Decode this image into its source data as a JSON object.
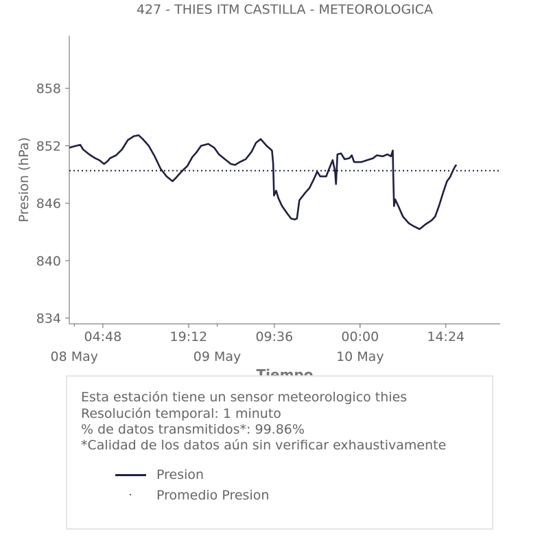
{
  "chart_data": {
    "type": "line",
    "title": "427 - THIES ITM CASTILLA - METEOROLOGICA",
    "xlabel": "Tiempo",
    "ylabel": "Presion (hPa)",
    "ylim": [
      833.4,
      863.5
    ],
    "y_ticks": [
      834,
      840,
      846,
      852,
      858
    ],
    "x_unit": "hours since 08 May 00:00",
    "xlim": [
      -0.84,
      71.53
    ],
    "x_ticks": [
      {
        "x": 4.8,
        "label": "04:48"
      },
      {
        "x": 19.2,
        "label": "19:12"
      },
      {
        "x": 33.6,
        "label": "09:36"
      },
      {
        "x": 48.0,
        "label": "00:00"
      },
      {
        "x": 62.4,
        "label": "14:24"
      }
    ],
    "x_day_labels": [
      {
        "x": 0,
        "label": "08 May"
      },
      {
        "x": 24,
        "label": "09 May"
      },
      {
        "x": 48,
        "label": "10 May"
      }
    ],
    "series": [
      {
        "name": "Presion",
        "color": "#1f2041",
        "style": "solid",
        "points": [
          [
            -0.84,
            851.8
          ],
          [
            0.3,
            852.0
          ],
          [
            1.0,
            852.1
          ],
          [
            1.5,
            851.6
          ],
          [
            2.5,
            851.1
          ],
          [
            3.5,
            850.7
          ],
          [
            4.2,
            850.5
          ],
          [
            5.0,
            850.1
          ],
          [
            5.6,
            850.4
          ],
          [
            6.0,
            850.7
          ],
          [
            7.0,
            851.0
          ],
          [
            8.0,
            851.6
          ],
          [
            9.0,
            852.6
          ],
          [
            10.0,
            853.0
          ],
          [
            10.8,
            853.1
          ],
          [
            11.5,
            852.7
          ],
          [
            12.5,
            852.0
          ],
          [
            13.5,
            850.9
          ],
          [
            14.5,
            849.6
          ],
          [
            15.5,
            848.8
          ],
          [
            16.5,
            848.3
          ],
          [
            17.0,
            848.6
          ],
          [
            18.0,
            849.3
          ],
          [
            19.0,
            849.9
          ],
          [
            19.8,
            850.8
          ],
          [
            20.5,
            851.3
          ],
          [
            21.3,
            852.0
          ],
          [
            22.5,
            852.2
          ],
          [
            23.5,
            851.8
          ],
          [
            24.3,
            851.1
          ],
          [
            25.3,
            850.6
          ],
          [
            26.3,
            850.1
          ],
          [
            27.0,
            850.0
          ],
          [
            27.8,
            850.3
          ],
          [
            28.8,
            850.6
          ],
          [
            29.8,
            851.4
          ],
          [
            30.5,
            852.3
          ],
          [
            31.3,
            852.7
          ],
          [
            32.3,
            852.0
          ],
          [
            33.2,
            851.5
          ],
          [
            33.4,
            850.2
          ],
          [
            33.55,
            846.8
          ],
          [
            33.9,
            847.3
          ],
          [
            34.3,
            846.5
          ],
          [
            34.9,
            845.7
          ],
          [
            35.8,
            844.9
          ],
          [
            36.4,
            844.4
          ],
          [
            37.0,
            844.3
          ],
          [
            37.4,
            844.4
          ],
          [
            37.8,
            846.3
          ],
          [
            38.8,
            847.1
          ],
          [
            39.5,
            847.6
          ],
          [
            40.3,
            848.6
          ],
          [
            40.8,
            849.3
          ],
          [
            41.3,
            848.8
          ],
          [
            42.3,
            848.8
          ],
          [
            42.8,
            849.6
          ],
          [
            43.4,
            850.5
          ],
          [
            43.8,
            849.3
          ],
          [
            43.95,
            848.0
          ],
          [
            44.2,
            851.1
          ],
          [
            44.8,
            851.2
          ],
          [
            45.4,
            850.6
          ],
          [
            46.2,
            850.7
          ],
          [
            46.6,
            851.0
          ],
          [
            47.0,
            850.3
          ],
          [
            48.2,
            850.3
          ],
          [
            49.2,
            850.5
          ],
          [
            50.2,
            850.7
          ],
          [
            50.8,
            851.0
          ],
          [
            51.8,
            850.9
          ],
          [
            52.6,
            851.1
          ],
          [
            53.2,
            850.9
          ],
          [
            53.5,
            851.5
          ],
          [
            53.55,
            849.5
          ],
          [
            53.7,
            845.7
          ],
          [
            53.9,
            846.4
          ],
          [
            54.5,
            845.6
          ],
          [
            55.2,
            844.6
          ],
          [
            56.2,
            843.9
          ],
          [
            57.0,
            843.6
          ],
          [
            58.0,
            843.3
          ],
          [
            59.0,
            843.8
          ],
          [
            60.0,
            844.2
          ],
          [
            60.6,
            844.6
          ],
          [
            61.3,
            845.8
          ],
          [
            62.0,
            847.2
          ],
          [
            62.6,
            848.3
          ],
          [
            63.1,
            848.7
          ],
          [
            63.6,
            849.4
          ],
          [
            64.0,
            849.9
          ],
          [
            64.2,
            850.0
          ]
        ]
      },
      {
        "name": "Promedio Presion",
        "color": "#1f2041",
        "style": "dotted",
        "value": 849.4
      }
    ]
  },
  "info": {
    "line1": "Esta estación tiene un sensor meteorologico thies",
    "line2": "Resolución temporal: 1 minuto",
    "line3": "% de datos transmitidos*: 99.86%",
    "line4": "*Calidad de los datos aún sin verificar exhaustivamente"
  },
  "legend": {
    "item1": "Presion",
    "item2": "Promedio Presion"
  },
  "colors": {
    "series": "#1f2041",
    "text": "#666666",
    "axis": "#666666",
    "box_border": "#e6e6e6"
  }
}
